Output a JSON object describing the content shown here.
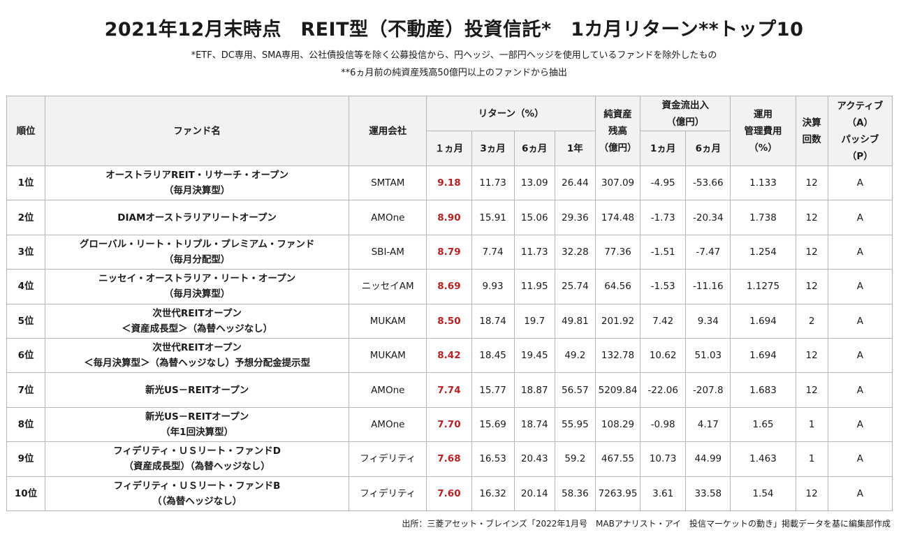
{
  "title": "2021年12月末時点　REIT型（不動産）投資信託*　1カ月リターン**トップ10",
  "notes": [
    "*ETF、DC専用、SMA専用、公社債投信等を除く公募投信から、円ヘッジ、一部円ヘッジを使用しているファンドを除外したもの",
    "**6ヵ月前の純資産残高50億円以上のファンドから抽出"
  ],
  "headers": {
    "rank": "順位",
    "fund": "ファンド名",
    "company": "運用会社",
    "return": "リターン（%）",
    "return_1m": "１ヵ月",
    "return_3m": "3ヵ月",
    "return_6m": "6ヵ月",
    "return_1y": "1年",
    "nav_l1": "純資産",
    "nav_l2": "残高",
    "nav_l3": "（億円）",
    "flow_l1": "資金流出入",
    "flow_l2": "（億円）",
    "flow_1m": "1ヵ月",
    "flow_6m": "6ヵ月",
    "fee_l1": "運用",
    "fee_l2": "管理費用",
    "fee_l3": "（%）",
    "settle_l1": "決算",
    "settle_l2": "回数",
    "type_l1": "アクティブ",
    "type_l2": "（A）",
    "type_l3": "パッシブ",
    "type_l4": "（P）"
  },
  "rows": [
    {
      "rank": "1位",
      "fund1": "オーストラリアREIT・リサーチ・オープン",
      "fund2": "（毎月決算型）",
      "company": "SMTAM",
      "r1m": "9.18",
      "r3m": "11.73",
      "r6m": "13.09",
      "r1y": "26.44",
      "nav": "307.09",
      "f1m": "-4.95",
      "f6m": "-53.66",
      "fee": "1.133",
      "settle": "12",
      "type": "A"
    },
    {
      "rank": "2位",
      "fund1": "DIAMオーストラリアリートオープン",
      "fund2": "",
      "company": "AMOne",
      "r1m": "8.90",
      "r3m": "15.91",
      "r6m": "15.06",
      "r1y": "29.36",
      "nav": "174.48",
      "f1m": "-1.73",
      "f6m": "-20.34",
      "fee": "1.738",
      "settle": "12",
      "type": "A"
    },
    {
      "rank": "3位",
      "fund1": "グローバル・リート・トリプル・プレミアム・ファンド",
      "fund2": "（毎月分配型）",
      "company": "SBI-AM",
      "r1m": "8.79",
      "r3m": "7.74",
      "r6m": "11.73",
      "r1y": "32.28",
      "nav": "77.36",
      "f1m": "-1.51",
      "f6m": "-7.47",
      "fee": "1.254",
      "settle": "12",
      "type": "A"
    },
    {
      "rank": "4位",
      "fund1": "ニッセイ・オーストラリア・リート・オープン",
      "fund2": "（毎月決算型）",
      "company": "ニッセイAM",
      "r1m": "8.69",
      "r3m": "9.93",
      "r6m": "11.95",
      "r1y": "25.74",
      "nav": "64.56",
      "f1m": "-1.53",
      "f6m": "-11.16",
      "fee": "1.1275",
      "settle": "12",
      "type": "A"
    },
    {
      "rank": "5位",
      "fund1": "次世代REITオープン",
      "fund2": "＜資産成長型＞（為替ヘッジなし）",
      "company": "MUKAM",
      "r1m": "8.50",
      "r3m": "18.74",
      "r6m": "19.7",
      "r1y": "49.81",
      "nav": "201.92",
      "f1m": "7.42",
      "f6m": "9.34",
      "fee": "1.694",
      "settle": "2",
      "type": "A"
    },
    {
      "rank": "6位",
      "fund1": "次世代REITオープン",
      "fund2": "＜毎月決算型＞（為替ヘッジなし）予想分配金提示型",
      "company": "MUKAM",
      "r1m": "8.42",
      "r3m": "18.45",
      "r6m": "19.45",
      "r1y": "49.2",
      "nav": "132.78",
      "f1m": "10.62",
      "f6m": "51.03",
      "fee": "1.694",
      "settle": "12",
      "type": "A"
    },
    {
      "rank": "7位",
      "fund1": "新光US－REITオープン",
      "fund2": "",
      "company": "AMOne",
      "r1m": "7.74",
      "r3m": "15.77",
      "r6m": "18.87",
      "r1y": "56.57",
      "nav": "5209.84",
      "f1m": "-22.06",
      "f6m": "-207.8",
      "fee": "1.683",
      "settle": "12",
      "type": "A"
    },
    {
      "rank": "8位",
      "fund1": "新光US－REITオープン",
      "fund2": "（年1回決算型）",
      "company": "AMOne",
      "r1m": "7.70",
      "r3m": "15.69",
      "r6m": "18.74",
      "r1y": "55.95",
      "nav": "108.29",
      "f1m": "-0.98",
      "f6m": "4.17",
      "fee": "1.65",
      "settle": "1",
      "type": "A"
    },
    {
      "rank": "9位",
      "fund1": "フィデリティ・ＵＳリート・ファンドD",
      "fund2": "（資産成長型）（為替ヘッジなし）",
      "company": "フィデリティ",
      "r1m": "7.68",
      "r3m": "16.53",
      "r6m": "20.43",
      "r1y": "59.2",
      "nav": "467.55",
      "f1m": "10.73",
      "f6m": "44.99",
      "fee": "1.463",
      "settle": "1",
      "type": "A"
    },
    {
      "rank": "10位",
      "fund1": "フィデリティ・ＵＳリート・ファンドB",
      "fund2": "（（為替ヘッジなし）",
      "company": "フィデリティ",
      "r1m": "7.60",
      "r3m": "16.32",
      "r6m": "20.14",
      "r1y": "58.36",
      "nav": "7263.95",
      "f1m": "3.61",
      "f6m": "33.58",
      "fee": "1.54",
      "settle": "12",
      "type": "A"
    }
  ],
  "source": "出所：三菱アセット・ブレインズ「2022年1月号　MABアナリスト・アイ　投信マーケットの動き」掲載データを基に編集部作成",
  "colors": {
    "return_1m_text": "#b22222",
    "header_bg": "#f2f2f2",
    "border": "#b5b5b5"
  }
}
